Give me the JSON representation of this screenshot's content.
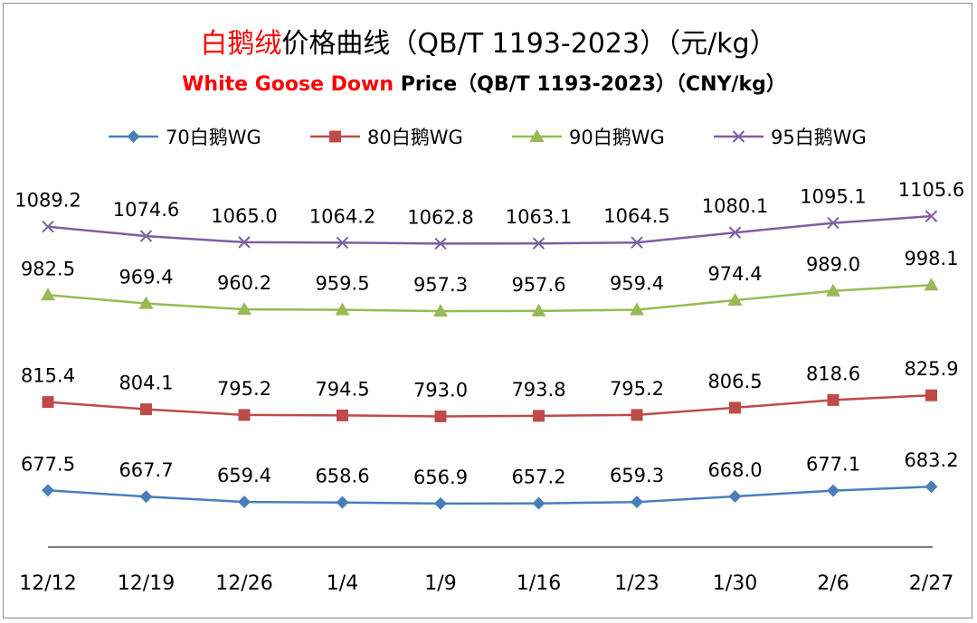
{
  "colors": {
    "title_red": "#ff0000",
    "title_black": "#000000",
    "axis": "#808080"
  },
  "chart_data": {
    "type": "line",
    "title_parts": [
      {
        "text": "白鹅绒",
        "color": "#ff0000"
      },
      {
        "text": "价格曲线（QB/T 1193-2023）（元/kg）",
        "color": "#000000"
      }
    ],
    "subtitle_parts": [
      {
        "text": "White Goose Down",
        "color": "#ff0000"
      },
      {
        "text": " Price（QB/T 1193-2023）（CNY/kg）",
        "color": "#000000"
      }
    ],
    "categories": [
      "12/12",
      "12/19",
      "12/26",
      "1/4",
      "1/9",
      "1/16",
      "1/23",
      "1/30",
      "2/6",
      "2/27"
    ],
    "grid": false,
    "legend_position": "top",
    "series": [
      {
        "name": "70白鹅WG",
        "color": "#4a7ebb",
        "marker": "diamond",
        "values": [
          677.5,
          667.7,
          659.4,
          658.6,
          656.9,
          657.2,
          659.3,
          668.0,
          677.1,
          683.2
        ],
        "labels": [
          "677.5",
          "667.7",
          "659.4",
          "658.6",
          "656.9",
          "657.2",
          "659.3",
          "668.0",
          "677.1",
          "683.2"
        ]
      },
      {
        "name": "80白鹅WG",
        "color": "#be4b48",
        "marker": "square",
        "values": [
          815.4,
          804.1,
          795.2,
          794.5,
          793.0,
          793.8,
          795.2,
          806.5,
          818.6,
          825.9
        ],
        "labels": [
          "815.4",
          "804.1",
          "795.2",
          "794.5",
          "793.0",
          "793.8",
          "795.2",
          "806.5",
          "818.6",
          "825.9"
        ]
      },
      {
        "name": "90白鹅WG",
        "color": "#98b954",
        "marker": "triangle",
        "values": [
          982.5,
          969.4,
          960.2,
          959.5,
          957.3,
          957.6,
          959.4,
          974.4,
          989.0,
          998.1
        ],
        "labels": [
          "982.5",
          "969.4",
          "960.2",
          "959.5",
          "957.3",
          "957.6",
          "959.4",
          "974.4",
          "989.0",
          "998.1"
        ]
      },
      {
        "name": "95白鹅WG",
        "color": "#7d5fa0",
        "marker": "x",
        "values": [
          1089.2,
          1074.6,
          1065.0,
          1064.2,
          1062.8,
          1063.1,
          1064.5,
          1080.1,
          1095.1,
          1105.6
        ],
        "labels": [
          "1089.2",
          "1074.6",
          "1065.0",
          "1064.2",
          "1062.8",
          "1063.1",
          "1064.5",
          "1080.1",
          "1095.1",
          "1105.6"
        ]
      }
    ]
  }
}
